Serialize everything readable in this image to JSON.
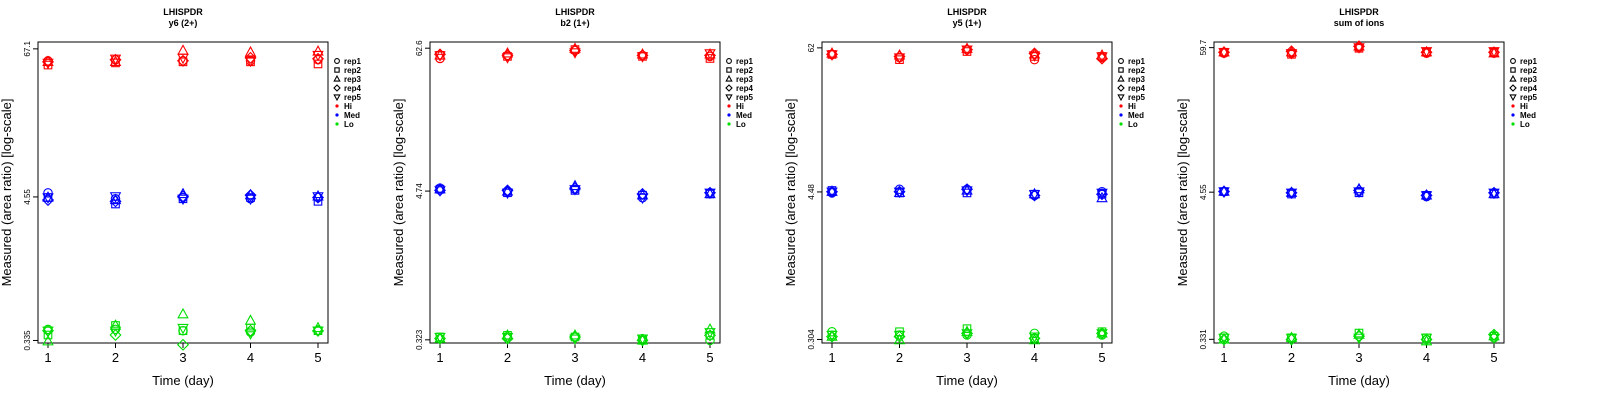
{
  "figure": {
    "replicates": [
      "rep1",
      "rep2",
      "rep3",
      "rep4",
      "rep5"
    ],
    "levels": [
      "Hi",
      "Med",
      "Lo"
    ],
    "colors": {
      "Hi": "#ff0000",
      "Med": "#0000ff",
      "Lo": "#00dd00"
    },
    "marker_icons": [
      "circle-icon",
      "square-icon",
      "triangle-up-icon",
      "diamond-icon",
      "triangle-down-icon"
    ]
  },
  "chart_data": [
    {
      "type": "scatter",
      "title": "LHISPDR",
      "subtitle": "y6 (2+)",
      "xlabel": "Time (day)",
      "ylabel": "Measured (area ratio) [log-scale]",
      "yscale": "log",
      "ylim": [
        0.32,
        76
      ],
      "categories": [
        "1",
        "2",
        "3",
        "4",
        "5"
      ],
      "yticks": [
        0.335,
        4.55,
        67.1
      ],
      "ytick_labels": [
        "0.335",
        "4.55",
        "67.1"
      ],
      "legend_position": "right",
      "series": [
        {
          "name": "Hi",
          "values": [
            [
              54,
              50,
              53,
              53,
              52
            ],
            [
              55,
              52,
              53,
              55,
              56
            ],
            [
              54,
              53,
              65,
              54,
              57
            ],
            [
              54,
              53,
              63,
              57,
              54
            ],
            [
              55,
              51,
              64,
              56,
              60
            ]
          ]
        },
        {
          "name": "Med",
          "values": [
            [
              4.9,
              4.5,
              4.5,
              4.3,
              4.5
            ],
            [
              4.4,
              4.0,
              4.3,
              4.2,
              4.6
            ],
            [
              4.5,
              4.4,
              4.8,
              4.6,
              4.4
            ],
            [
              4.4,
              4.5,
              4.7,
              4.7,
              4.4
            ],
            [
              4.5,
              4.2,
              4.6,
              4.5,
              4.6
            ]
          ]
        },
        {
          "name": "Lo",
          "values": [
            [
              0.41,
              0.37,
              0.33,
              0.4,
              0.4
            ],
            [
              0.41,
              0.44,
              0.44,
              0.37,
              0.4
            ],
            [
              0.4,
              0.4,
              0.54,
              0.31,
              0.42
            ],
            [
              0.39,
              0.42,
              0.48,
              0.4,
              0.38
            ],
            [
              0.4,
              0.4,
              0.42,
              0.4,
              0.4
            ]
          ]
        }
      ]
    },
    {
      "type": "scatter",
      "title": "LHISPDR",
      "subtitle": "b2 (1+)",
      "xlabel": "Time (day)",
      "ylabel": "Measured (area ratio) [log-scale]",
      "yscale": "log",
      "ylim": [
        0.305,
        70
      ],
      "categories": [
        "1",
        "2",
        "3",
        "4",
        "5"
      ],
      "yticks": [
        0.323,
        4.74,
        62.6
      ],
      "ytick_labels": [
        "0.323",
        "4.74",
        "62.6"
      ],
      "legend_position": "right",
      "series": [
        {
          "name": "Hi",
          "values": [
            [
              52,
              55,
              55,
              56,
              55
            ],
            [
              55,
              54,
              57,
              55,
              53
            ],
            [
              60,
              61,
              62,
              60,
              58
            ],
            [
              55,
              54,
              56,
              55,
              54
            ],
            [
              54,
              52,
              56,
              55,
              57
            ]
          ]
        },
        {
          "name": "Med",
          "values": [
            [
              5.0,
              4.9,
              4.9,
              4.8,
              4.8
            ],
            [
              4.7,
              4.6,
              4.7,
              4.8,
              4.6
            ],
            [
              4.9,
              4.8,
              5.2,
              5.0,
              4.9
            ],
            [
              4.2,
              4.4,
              4.4,
              4.5,
              4.2
            ],
            [
              4.6,
              4.5,
              4.5,
              4.6,
              4.6
            ]
          ]
        },
        {
          "name": "Lo",
          "values": [
            [
              0.33,
              0.34,
              0.33,
              0.33,
              0.34
            ],
            [
              0.34,
              0.35,
              0.35,
              0.33,
              0.34
            ],
            [
              0.34,
              0.34,
              0.35,
              0.34,
              0.33
            ],
            [
              0.33,
              0.32,
              0.32,
              0.32,
              0.33
            ],
            [
              0.32,
              0.35,
              0.39,
              0.35,
              0.37
            ]
          ]
        }
      ]
    },
    {
      "type": "scatter",
      "title": "LHISPDR",
      "subtitle": "y5 (1+)",
      "xlabel": "Time (day)",
      "ylabel": "Measured (area ratio) [log-scale]",
      "yscale": "log",
      "ylim": [
        0.285,
        69
      ],
      "categories": [
        "1",
        "2",
        "3",
        "4",
        "5"
      ],
      "yticks": [
        0.304,
        4.48,
        62
      ],
      "ytick_labels": [
        "0.304",
        "4.48",
        "62"
      ],
      "legend_position": "right",
      "series": [
        {
          "name": "Hi",
          "values": [
            [
              55,
              55,
              56,
              55,
              55
            ],
            [
              52,
              50,
              54,
              53,
              52
            ],
            [
              60,
              58,
              61,
              60,
              60
            ],
            [
              50,
              53,
              55,
              56,
              54
            ],
            [
              52,
              53,
              54,
              51,
              53
            ]
          ]
        },
        {
          "name": "Med",
          "values": [
            [
              4.4,
              4.6,
              4.5,
              4.5,
              4.5
            ],
            [
              4.7,
              4.4,
              4.4,
              4.5,
              4.5
            ],
            [
              4.7,
              4.4,
              4.6,
              4.7,
              4.6
            ],
            [
              4.2,
              4.3,
              4.3,
              4.2,
              4.3
            ],
            [
              4.5,
              4.3,
              4.0,
              4.3,
              4.4
            ]
          ]
        },
        {
          "name": "Lo",
          "values": [
            [
              0.35,
              0.33,
              0.32,
              0.32,
              0.33
            ],
            [
              0.33,
              0.35,
              0.3,
              0.32,
              0.33
            ],
            [
              0.33,
              0.37,
              0.35,
              0.34,
              0.34
            ],
            [
              0.34,
              0.31,
              0.3,
              0.31,
              0.32
            ],
            [
              0.33,
              0.35,
              0.34,
              0.34,
              0.34
            ]
          ]
        }
      ]
    },
    {
      "type": "scatter",
      "title": "LHISPDR",
      "subtitle": "sum of ions",
      "xlabel": "Time (day)",
      "ylabel": "Measured (area ratio) [log-scale]",
      "yscale": "log",
      "ylim": [
        0.31,
        66
      ],
      "categories": [
        "1",
        "2",
        "3",
        "4",
        "5"
      ],
      "yticks": [
        0.331,
        4.55,
        59.7
      ],
      "ytick_labels": [
        "0.331",
        "4.55",
        "59.7"
      ],
      "legend_position": "right",
      "series": [
        {
          "name": "Hi",
          "values": [
            [
              54,
              55,
              55,
              55,
              55
            ],
            [
              54,
              53,
              55,
              56,
              54
            ],
            [
              60,
              59,
              61,
              61,
              60
            ],
            [
              54,
              55,
              55,
              55,
              56
            ],
            [
              54,
              55,
              54,
              55,
              56
            ]
          ]
        },
        {
          "name": "Med",
          "values": [
            [
              4.6,
              4.6,
              4.6,
              4.6,
              4.6
            ],
            [
              4.5,
              4.4,
              4.5,
              4.5,
              4.5
            ],
            [
              4.6,
              4.5,
              4.8,
              4.7,
              4.6
            ],
            [
              4.2,
              4.3,
              4.3,
              4.3,
              4.3
            ],
            [
              4.5,
              4.4,
              4.4,
              4.5,
              4.5
            ]
          ]
        },
        {
          "name": "Lo",
          "values": [
            [
              0.35,
              0.34,
              0.33,
              0.33,
              0.34
            ],
            [
              0.34,
              0.34,
              0.34,
              0.33,
              0.34
            ],
            [
              0.35,
              0.37,
              0.36,
              0.35,
              0.34
            ],
            [
              0.33,
              0.34,
              0.32,
              0.33,
              0.34
            ],
            [
              0.34,
              0.35,
              0.35,
              0.36,
              0.34
            ]
          ]
        }
      ]
    }
  ]
}
